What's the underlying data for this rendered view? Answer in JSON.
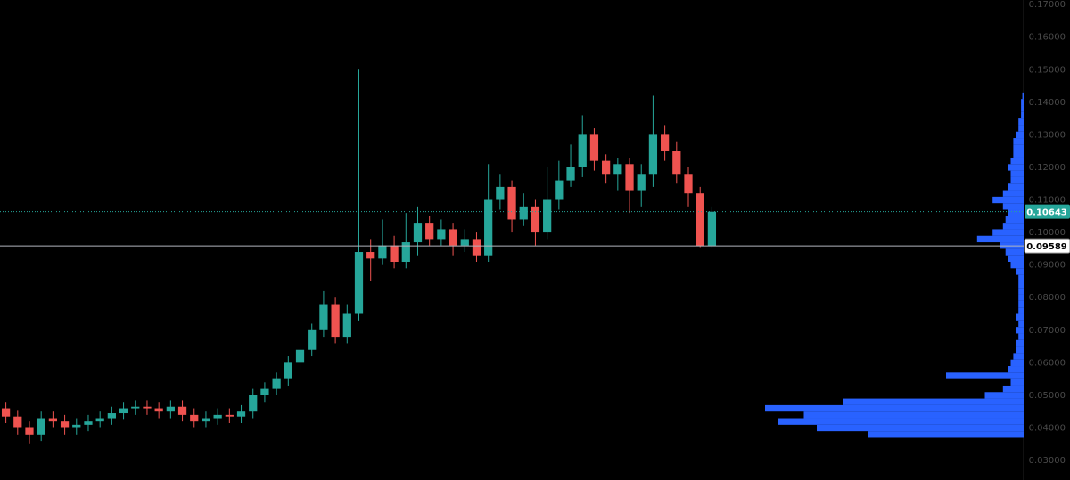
{
  "chart_data": {
    "type": "candlestick",
    "up_color": "#26a69a",
    "down_color": "#ef5350",
    "ylim": [
      0.024,
      0.1714
    ],
    "yticks": [
      {
        "value": 0.03,
        "label": "0.03000"
      },
      {
        "value": 0.04,
        "label": "0.04000"
      },
      {
        "value": 0.05,
        "label": "0.05000"
      },
      {
        "value": 0.06,
        "label": "0.06000"
      },
      {
        "value": 0.07,
        "label": "0.07000"
      },
      {
        "value": 0.08,
        "label": "0.08000"
      },
      {
        "value": 0.09,
        "label": "0.09000"
      },
      {
        "value": 0.1,
        "label": "0.10000"
      },
      {
        "value": 0.11,
        "label": "0.11000"
      },
      {
        "value": 0.12,
        "label": "0.12000"
      },
      {
        "value": 0.13,
        "label": "0.13000"
      },
      {
        "value": 0.14,
        "label": "0.14000"
      },
      {
        "value": 0.15,
        "label": "0.15000"
      },
      {
        "value": 0.16,
        "label": "0.16000"
      },
      {
        "value": 0.17,
        "label": "0.17000"
      }
    ],
    "open": [
      0.046,
      0.0435,
      0.04,
      0.038,
      0.043,
      0.042,
      0.04,
      0.041,
      0.042,
      0.043,
      0.0445,
      0.046,
      0.0465,
      0.046,
      0.045,
      0.0465,
      0.044,
      0.042,
      0.043,
      0.044,
      0.0435,
      0.045,
      0.05,
      0.052,
      0.055,
      0.06,
      0.064,
      0.07,
      0.078,
      0.068,
      0.075,
      0.094,
      0.092,
      0.096,
      0.091,
      0.097,
      0.103,
      0.098,
      0.101,
      0.096,
      0.098,
      0.093,
      0.11,
      0.114,
      0.104,
      0.108,
      0.1,
      0.11,
      0.116,
      0.12,
      0.13,
      0.122,
      0.118,
      0.121,
      0.113,
      0.118,
      0.13,
      0.125,
      0.118,
      0.112,
      0.0958
    ],
    "high": [
      0.048,
      0.0455,
      0.042,
      0.045,
      0.045,
      0.044,
      0.043,
      0.044,
      0.045,
      0.0465,
      0.048,
      0.0485,
      0.0485,
      0.048,
      0.0485,
      0.0485,
      0.046,
      0.045,
      0.046,
      0.046,
      0.047,
      0.052,
      0.054,
      0.057,
      0.062,
      0.066,
      0.072,
      0.082,
      0.08,
      0.078,
      0.15,
      0.098,
      0.104,
      0.099,
      0.106,
      0.108,
      0.105,
      0.104,
      0.103,
      0.101,
      0.1,
      0.121,
      0.118,
      0.116,
      0.112,
      0.11,
      0.12,
      0.122,
      0.127,
      0.136,
      0.132,
      0.124,
      0.123,
      0.123,
      0.121,
      0.142,
      0.133,
      0.128,
      0.12,
      0.114,
      0.108
    ],
    "low": [
      0.0415,
      0.038,
      0.035,
      0.036,
      0.04,
      0.038,
      0.038,
      0.039,
      0.04,
      0.041,
      0.0425,
      0.044,
      0.044,
      0.043,
      0.043,
      0.042,
      0.04,
      0.04,
      0.041,
      0.0415,
      0.0415,
      0.043,
      0.048,
      0.05,
      0.053,
      0.058,
      0.062,
      0.068,
      0.066,
      0.066,
      0.073,
      0.085,
      0.09,
      0.089,
      0.089,
      0.093,
      0.096,
      0.096,
      0.093,
      0.094,
      0.091,
      0.091,
      0.107,
      0.1,
      0.102,
      0.096,
      0.098,
      0.107,
      0.114,
      0.117,
      0.119,
      0.115,
      0.113,
      0.106,
      0.108,
      0.114,
      0.122,
      0.115,
      0.108,
      0.0955,
      0.0955
    ],
    "close": [
      0.0435,
      0.04,
      0.038,
      0.043,
      0.042,
      0.04,
      0.041,
      0.042,
      0.043,
      0.0445,
      0.046,
      0.0465,
      0.046,
      0.045,
      0.0465,
      0.044,
      0.042,
      0.043,
      0.044,
      0.0435,
      0.045,
      0.05,
      0.052,
      0.055,
      0.06,
      0.064,
      0.07,
      0.078,
      0.068,
      0.075,
      0.094,
      0.092,
      0.096,
      0.091,
      0.097,
      0.103,
      0.098,
      0.101,
      0.096,
      0.098,
      0.093,
      0.11,
      0.114,
      0.104,
      0.108,
      0.1,
      0.11,
      0.116,
      0.12,
      0.13,
      0.122,
      0.118,
      0.121,
      0.113,
      0.118,
      0.13,
      0.125,
      0.118,
      0.112,
      0.0958,
      0.1064
    ],
    "price_lines": [
      {
        "value": 0.10643,
        "color": "#26a69a",
        "style": "dotted"
      },
      {
        "value": 0.09589,
        "color": "#b2b5be",
        "style": "solid"
      }
    ],
    "volume_profile": {
      "color": "#2962ff",
      "prices": [
        0.038,
        0.04,
        0.042,
        0.044,
        0.046,
        0.048,
        0.05,
        0.052,
        0.054,
        0.056,
        0.058,
        0.06,
        0.062,
        0.064,
        0.066,
        0.068,
        0.07,
        0.072,
        0.074,
        0.076,
        0.078,
        0.08,
        0.082,
        0.084,
        0.086,
        0.088,
        0.09,
        0.092,
        0.094,
        0.096,
        0.098,
        0.1,
        0.102,
        0.104,
        0.106,
        0.108,
        0.11,
        0.112,
        0.114,
        0.116,
        0.118,
        0.12,
        0.122,
        0.124,
        0.126,
        0.128,
        0.13,
        0.132,
        0.134,
        0.136,
        0.138,
        0.14,
        0.142
      ],
      "values": [
        60,
        80,
        95,
        85,
        100,
        70,
        15,
        8,
        5,
        30,
        6,
        5,
        4,
        3,
        3,
        2,
        3,
        2,
        3,
        2,
        2,
        2,
        2,
        2,
        2,
        3,
        5,
        6,
        7,
        9,
        18,
        12,
        8,
        7,
        6,
        8,
        12,
        8,
        6,
        5,
        5,
        6,
        5,
        4,
        4,
        4,
        3,
        2,
        2,
        1,
        1,
        1,
        0.5
      ]
    }
  }
}
